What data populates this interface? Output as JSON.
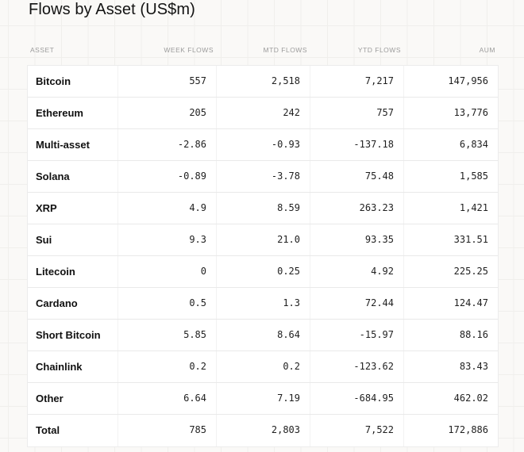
{
  "title": "Flows by Asset (US$m)",
  "colors": {
    "page_background": "#faf9f7",
    "grid_line": "#f0efec",
    "row_background": "#ffffff",
    "row_border": "#e9e9e9",
    "header_text": "#9c9c9c",
    "title_text": "#131313",
    "value_text": "#1f1f1f"
  },
  "table": {
    "columns": [
      "ASSET",
      "WEEK FLOWS",
      "MTD FLOWS",
      "YTD FLOWS",
      "AUM"
    ],
    "rows": [
      {
        "asset": "Bitcoin",
        "week": "557",
        "mtd": "2,518",
        "ytd": "7,217",
        "aum": "147,956"
      },
      {
        "asset": "Ethereum",
        "week": "205",
        "mtd": "242",
        "ytd": "757",
        "aum": "13,776"
      },
      {
        "asset": "Multi-asset",
        "week": "-2.86",
        "mtd": "-0.93",
        "ytd": "-137.18",
        "aum": "6,834"
      },
      {
        "asset": "Solana",
        "week": "-0.89",
        "mtd": "-3.78",
        "ytd": "75.48",
        "aum": "1,585"
      },
      {
        "asset": "XRP",
        "week": "4.9",
        "mtd": "8.59",
        "ytd": "263.23",
        "aum": "1,421"
      },
      {
        "asset": "Sui",
        "week": "9.3",
        "mtd": "21.0",
        "ytd": "93.35",
        "aum": "331.51"
      },
      {
        "asset": "Litecoin",
        "week": "0",
        "mtd": "0.25",
        "ytd": "4.92",
        "aum": "225.25"
      },
      {
        "asset": "Cardano",
        "week": "0.5",
        "mtd": "1.3",
        "ytd": "72.44",
        "aum": "124.47"
      },
      {
        "asset": "Short Bitcoin",
        "week": "5.85",
        "mtd": "8.64",
        "ytd": "-15.97",
        "aum": "88.16"
      },
      {
        "asset": "Chainlink",
        "week": "0.2",
        "mtd": "0.2",
        "ytd": "-123.62",
        "aum": "83.43"
      },
      {
        "asset": "Other",
        "week": "6.64",
        "mtd": "7.19",
        "ytd": "-684.95",
        "aum": "462.02"
      },
      {
        "asset": "Total",
        "week": "785",
        "mtd": "2,803",
        "ytd": "7,522",
        "aum": "172,886"
      }
    ]
  },
  "chart_data": {
    "type": "table",
    "title": "Flows by Asset (US$m)",
    "columns": [
      "ASSET",
      "WEEK FLOWS",
      "MTD FLOWS",
      "YTD FLOWS",
      "AUM"
    ],
    "rows": [
      [
        "Bitcoin",
        557,
        2518,
        7217,
        147956
      ],
      [
        "Ethereum",
        205,
        242,
        757,
        13776
      ],
      [
        "Multi-asset",
        -2.86,
        -0.93,
        -137.18,
        6834
      ],
      [
        "Solana",
        -0.89,
        -3.78,
        75.48,
        1585
      ],
      [
        "XRP",
        4.9,
        8.59,
        263.23,
        1421
      ],
      [
        "Sui",
        9.3,
        21.0,
        93.35,
        331.51
      ],
      [
        "Litecoin",
        0,
        0.25,
        4.92,
        225.25
      ],
      [
        "Cardano",
        0.5,
        1.3,
        72.44,
        124.47
      ],
      [
        "Short Bitcoin",
        5.85,
        8.64,
        -15.97,
        88.16
      ],
      [
        "Chainlink",
        0.2,
        0.2,
        -123.62,
        83.43
      ],
      [
        "Other",
        6.64,
        7.19,
        -684.95,
        462.02
      ],
      [
        "Total",
        785,
        2803,
        7522,
        172886
      ]
    ],
    "units": "US$m"
  }
}
